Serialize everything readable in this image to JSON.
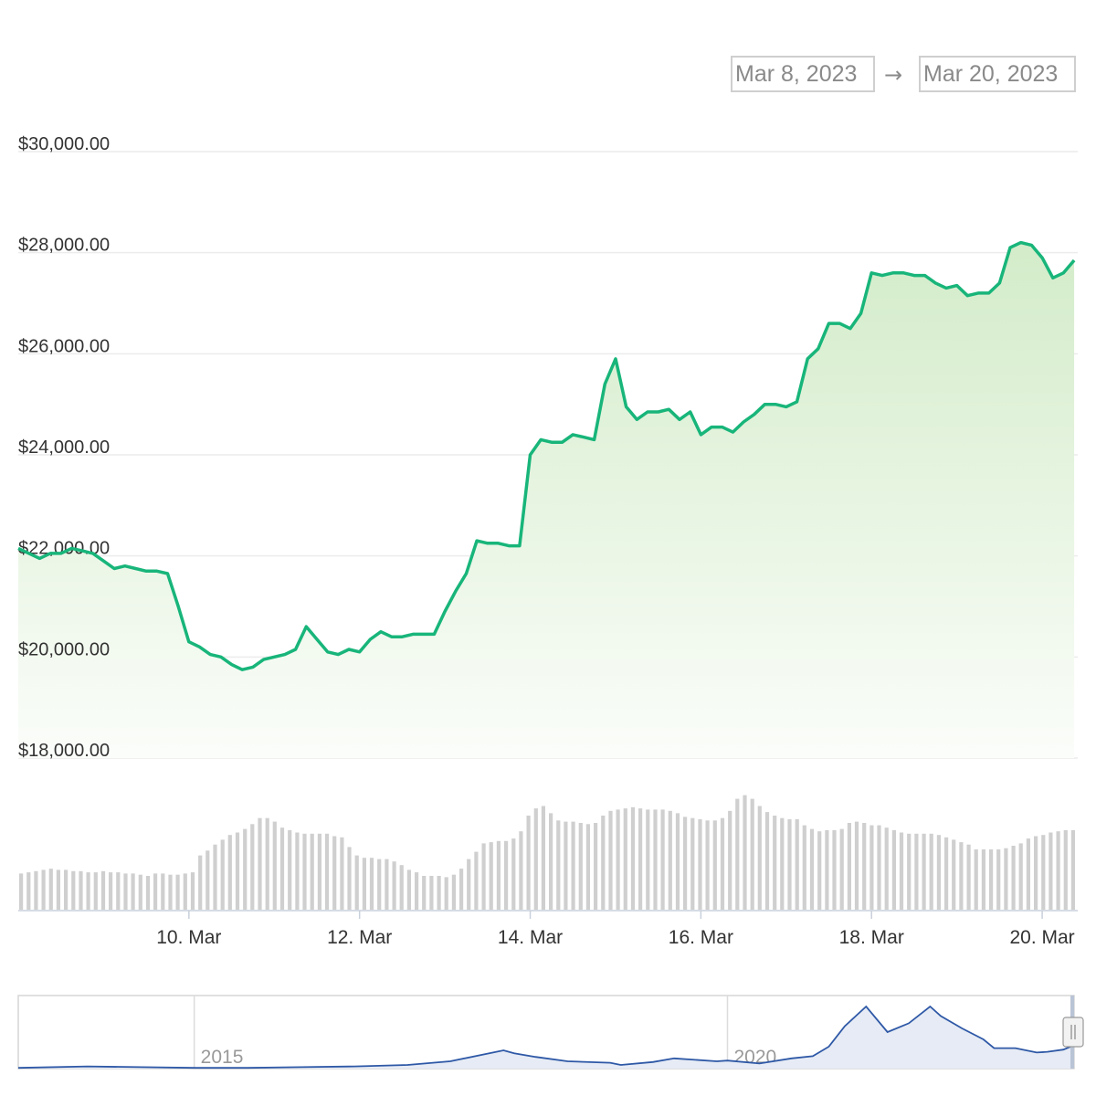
{
  "range_selector": {
    "from": "Mar 8, 2023",
    "arrow": "→",
    "to": "Mar 20, 2023"
  },
  "colors": {
    "price_line": "#18b57a",
    "area_top": "#d3ecc9",
    "area_bottom": "#fbfdfa",
    "volume_bar": "#cfcfcf",
    "navigator_line": "#2e58a6",
    "navigator_fill": "#e6ebf5",
    "grid": "#ececec",
    "axis_label": "#333333",
    "muted_label": "#999999"
  },
  "chart_data": [
    {
      "type": "area",
      "name": "price",
      "ylim": [
        18000,
        30000
      ],
      "y_ticks": [
        18000,
        20000,
        22000,
        24000,
        26000,
        28000,
        30000
      ],
      "y_tick_labels": [
        "$18,000.00",
        "$20,000.00",
        "$22,000.00",
        "$24,000.00",
        "$26,000.00",
        "$28,000.00",
        "$30,000.00"
      ],
      "x_range": [
        "2023-03-08",
        "2023-03-20T10:00"
      ],
      "x_ticks": [
        "2023-03-10",
        "2023-03-12",
        "2023-03-14",
        "2023-03-16",
        "2023-03-18",
        "2023-03-20"
      ],
      "x_tick_labels": [
        "10. Mar",
        "12. Mar",
        "14. Mar",
        "16. Mar",
        "18. Mar",
        "20. Mar"
      ],
      "grid": true,
      "points": [
        [
          "2023-03-08T00:00",
          22150
        ],
        [
          "2023-03-08T03:00",
          22050
        ],
        [
          "2023-03-08T06:00",
          21950
        ],
        [
          "2023-03-08T09:00",
          22050
        ],
        [
          "2023-03-08T12:00",
          22050
        ],
        [
          "2023-03-08T15:00",
          22150
        ],
        [
          "2023-03-08T18:00",
          22100
        ],
        [
          "2023-03-08T21:00",
          22050
        ],
        [
          "2023-03-09T00:00",
          21900
        ],
        [
          "2023-03-09T03:00",
          21750
        ],
        [
          "2023-03-09T06:00",
          21800
        ],
        [
          "2023-03-09T09:00",
          21750
        ],
        [
          "2023-03-09T12:00",
          21700
        ],
        [
          "2023-03-09T15:00",
          21700
        ],
        [
          "2023-03-09T18:00",
          21650
        ],
        [
          "2023-03-09T21:00",
          21000
        ],
        [
          "2023-03-10T00:00",
          20300
        ],
        [
          "2023-03-10T03:00",
          20200
        ],
        [
          "2023-03-10T06:00",
          20050
        ],
        [
          "2023-03-10T09:00",
          20000
        ],
        [
          "2023-03-10T12:00",
          19850
        ],
        [
          "2023-03-10T15:00",
          19750
        ],
        [
          "2023-03-10T18:00",
          19800
        ],
        [
          "2023-03-10T21:00",
          19950
        ],
        [
          "2023-03-11T00:00",
          20000
        ],
        [
          "2023-03-11T03:00",
          20050
        ],
        [
          "2023-03-11T06:00",
          20150
        ],
        [
          "2023-03-11T09:00",
          20600
        ],
        [
          "2023-03-11T12:00",
          20350
        ],
        [
          "2023-03-11T15:00",
          20100
        ],
        [
          "2023-03-11T18:00",
          20050
        ],
        [
          "2023-03-11T21:00",
          20150
        ],
        [
          "2023-03-12T00:00",
          20100
        ],
        [
          "2023-03-12T03:00",
          20350
        ],
        [
          "2023-03-12T06:00",
          20500
        ],
        [
          "2023-03-12T09:00",
          20400
        ],
        [
          "2023-03-12T12:00",
          20400
        ],
        [
          "2023-03-12T15:00",
          20450
        ],
        [
          "2023-03-12T18:00",
          20450
        ],
        [
          "2023-03-12T21:00",
          20450
        ],
        [
          "2023-03-13T00:00",
          20900
        ],
        [
          "2023-03-13T03:00",
          21300
        ],
        [
          "2023-03-13T06:00",
          21650
        ],
        [
          "2023-03-13T09:00",
          22300
        ],
        [
          "2023-03-13T12:00",
          22250
        ],
        [
          "2023-03-13T15:00",
          22250
        ],
        [
          "2023-03-13T18:00",
          22200
        ],
        [
          "2023-03-13T21:00",
          22200
        ],
        [
          "2023-03-14T00:00",
          24000
        ],
        [
          "2023-03-14T03:00",
          24300
        ],
        [
          "2023-03-14T06:00",
          24250
        ],
        [
          "2023-03-14T09:00",
          24250
        ],
        [
          "2023-03-14T12:00",
          24400
        ],
        [
          "2023-03-14T15:00",
          24350
        ],
        [
          "2023-03-14T18:00",
          24300
        ],
        [
          "2023-03-14T21:00",
          25400
        ],
        [
          "2023-03-15T00:00",
          25900
        ],
        [
          "2023-03-15T03:00",
          24950
        ],
        [
          "2023-03-15T06:00",
          24700
        ],
        [
          "2023-03-15T09:00",
          24850
        ],
        [
          "2023-03-15T12:00",
          24850
        ],
        [
          "2023-03-15T15:00",
          24900
        ],
        [
          "2023-03-15T18:00",
          24700
        ],
        [
          "2023-03-15T21:00",
          24850
        ],
        [
          "2023-03-16T00:00",
          24400
        ],
        [
          "2023-03-16T03:00",
          24550
        ],
        [
          "2023-03-16T06:00",
          24550
        ],
        [
          "2023-03-16T09:00",
          24450
        ],
        [
          "2023-03-16T12:00",
          24650
        ],
        [
          "2023-03-16T15:00",
          24800
        ],
        [
          "2023-03-16T18:00",
          25000
        ],
        [
          "2023-03-16T21:00",
          25000
        ],
        [
          "2023-03-17T00:00",
          24950
        ],
        [
          "2023-03-17T03:00",
          25050
        ],
        [
          "2023-03-17T06:00",
          25900
        ],
        [
          "2023-03-17T09:00",
          26100
        ],
        [
          "2023-03-17T12:00",
          26600
        ],
        [
          "2023-03-17T15:00",
          26600
        ],
        [
          "2023-03-17T18:00",
          26500
        ],
        [
          "2023-03-17T21:00",
          26800
        ],
        [
          "2023-03-18T00:00",
          27600
        ],
        [
          "2023-03-18T03:00",
          27550
        ],
        [
          "2023-03-18T06:00",
          27600
        ],
        [
          "2023-03-18T09:00",
          27600
        ],
        [
          "2023-03-18T12:00",
          27550
        ],
        [
          "2023-03-18T15:00",
          27550
        ],
        [
          "2023-03-18T18:00",
          27400
        ],
        [
          "2023-03-18T21:00",
          27300
        ],
        [
          "2023-03-19T00:00",
          27350
        ],
        [
          "2023-03-19T03:00",
          27150
        ],
        [
          "2023-03-19T06:00",
          27200
        ],
        [
          "2023-03-19T09:00",
          27200
        ],
        [
          "2023-03-19T12:00",
          27400
        ],
        [
          "2023-03-19T15:00",
          28100
        ],
        [
          "2023-03-19T18:00",
          28200
        ],
        [
          "2023-03-19T21:00",
          28150
        ],
        [
          "2023-03-20T00:00",
          27900
        ],
        [
          "2023-03-20T03:00",
          27500
        ],
        [
          "2023-03-20T06:00",
          27600
        ],
        [
          "2023-03-20T09:00",
          27850
        ]
      ]
    },
    {
      "type": "bar",
      "name": "volume",
      "values": [
        30,
        31,
        32,
        33,
        34,
        33,
        33,
        32,
        32,
        31,
        31,
        32,
        31,
        31,
        30,
        30,
        29,
        28,
        30,
        30,
        29,
        29,
        30,
        31,
        45,
        49,
        54,
        58,
        62,
        64,
        67,
        71,
        76,
        76,
        73,
        68,
        66,
        64,
        63,
        63,
        63,
        63,
        61,
        60,
        52,
        45,
        43,
        43,
        42,
        42,
        40,
        37,
        33,
        31,
        28,
        28,
        28,
        27,
        29,
        34,
        42,
        48,
        55,
        56,
        57,
        57,
        59,
        65,
        78,
        84,
        86,
        80,
        74,
        73,
        73,
        72,
        71,
        72,
        78,
        82,
        83,
        84,
        85,
        84,
        83,
        83,
        83,
        82,
        80,
        77,
        76,
        75,
        74,
        74,
        76,
        82,
        92,
        95,
        92,
        86,
        81,
        78,
        76,
        75,
        75,
        70,
        67,
        65,
        66,
        66,
        67,
        72,
        73,
        72,
        70,
        70,
        68,
        66,
        64,
        63,
        63,
        63,
        63,
        62,
        60,
        58,
        56,
        54,
        50,
        50,
        50,
        50,
        51,
        53,
        55,
        59,
        61,
        62,
        64,
        65,
        66,
        66
      ]
    },
    {
      "type": "area",
      "name": "navigator",
      "x_tick_labels": [
        "2015",
        "2020"
      ],
      "x_ticks": [
        2015,
        2020
      ],
      "x_range": [
        2013.35,
        2023.25
      ],
      "points": [
        [
          2013.35,
          0.01
        ],
        [
          2014.0,
          0.03
        ],
        [
          2014.5,
          0.02
        ],
        [
          2015.0,
          0.01
        ],
        [
          2015.5,
          0.01
        ],
        [
          2016.0,
          0.02
        ],
        [
          2016.5,
          0.03
        ],
        [
          2017.0,
          0.05
        ],
        [
          2017.4,
          0.1
        ],
        [
          2017.9,
          0.25
        ],
        [
          2018.0,
          0.21
        ],
        [
          2018.2,
          0.16
        ],
        [
          2018.5,
          0.1
        ],
        [
          2018.9,
          0.08
        ],
        [
          2019.0,
          0.05
        ],
        [
          2019.3,
          0.09
        ],
        [
          2019.5,
          0.14
        ],
        [
          2019.9,
          0.1
        ],
        [
          2020.0,
          0.11
        ],
        [
          2020.3,
          0.07
        ],
        [
          2020.6,
          0.14
        ],
        [
          2020.8,
          0.17
        ],
        [
          2020.95,
          0.3
        ],
        [
          2021.1,
          0.58
        ],
        [
          2021.3,
          0.85
        ],
        [
          2021.5,
          0.5
        ],
        [
          2021.7,
          0.62
        ],
        [
          2021.9,
          0.85
        ],
        [
          2022.0,
          0.72
        ],
        [
          2022.2,
          0.55
        ],
        [
          2022.4,
          0.4
        ],
        [
          2022.5,
          0.28
        ],
        [
          2022.7,
          0.28
        ],
        [
          2022.9,
          0.22
        ],
        [
          2023.0,
          0.23
        ],
        [
          2023.15,
          0.26
        ],
        [
          2023.25,
          0.32
        ]
      ]
    }
  ]
}
